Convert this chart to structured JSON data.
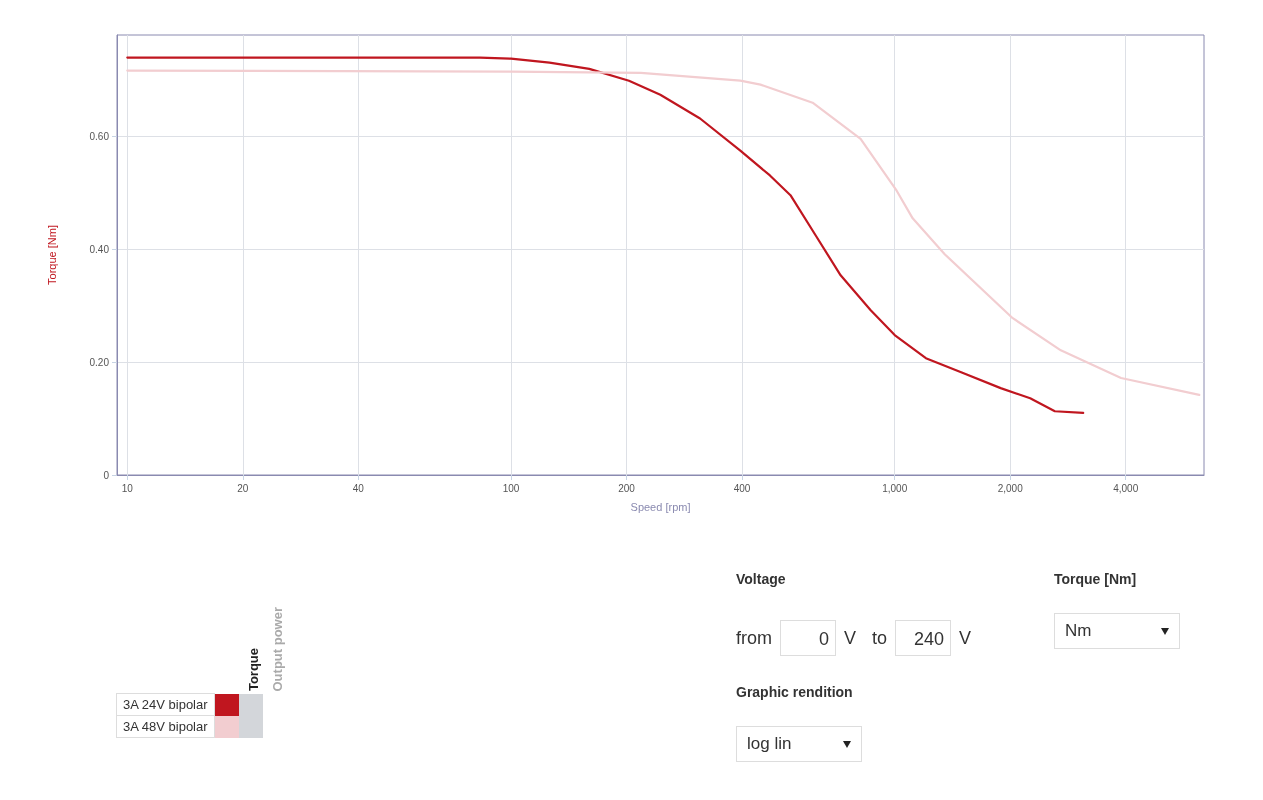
{
  "chart_data": {
    "type": "line",
    "xlabel": "Speed [rpm]",
    "ylabel": "Torque [Nm]",
    "log": "x",
    "xlim": [
      9.4,
      6400
    ],
    "xticks": [
      10,
      20,
      40,
      100,
      200,
      400,
      {
        "value": 1000,
        "label": "1,000"
      },
      {
        "value": 2000,
        "label": "2,000"
      },
      {
        "value": 4000,
        "label": "4,000"
      }
    ],
    "ylim": [
      0,
      0.78
    ],
    "yticks": [
      0,
      {
        "value": 0.2,
        "label": "0.20"
      },
      {
        "value": 0.4,
        "label": "0.40"
      },
      {
        "value": 0.6,
        "label": "0.60"
      }
    ],
    "grid": true,
    "legend": "bottom left",
    "marker": "none",
    "line_style": "solid",
    "series": [
      {
        "name": "3A 24V bipolar",
        "color": "#c0161f",
        "x": [
          10,
          83,
          100,
          126,
          160,
          203,
          245,
          311,
          396,
          473,
          535,
          622,
          723,
          866,
          1000,
          1206,
          1490,
          1889,
          2255,
          2615,
          3100
        ],
        "values": [
          0.74,
          0.74,
          0.738,
          0.731,
          0.72,
          0.699,
          0.674,
          0.632,
          0.575,
          0.531,
          0.496,
          0.425,
          0.354,
          0.292,
          0.248,
          0.207,
          0.182,
          0.154,
          0.136,
          0.113,
          0.11
        ]
      },
      {
        "name": "3A 48V bipolar",
        "color": "#f2cdd0",
        "x": [
          10,
          100,
          218,
          396,
          447,
          611,
          815,
          1012,
          1114,
          1352,
          2031,
          2710,
          3890,
          6220
        ],
        "values": [
          0.717,
          0.715,
          0.713,
          0.699,
          0.692,
          0.66,
          0.596,
          0.504,
          0.455,
          0.391,
          0.278,
          0.221,
          0.172,
          0.142
        ]
      }
    ],
    "annotations": [
      "Torque",
      "Output power",
      "Voltage",
      "from",
      "0",
      "V",
      "to",
      "240",
      "V",
      "Torque [Nm]",
      "Nm",
      "Graphic rendition",
      "log lin"
    ]
  }
}
